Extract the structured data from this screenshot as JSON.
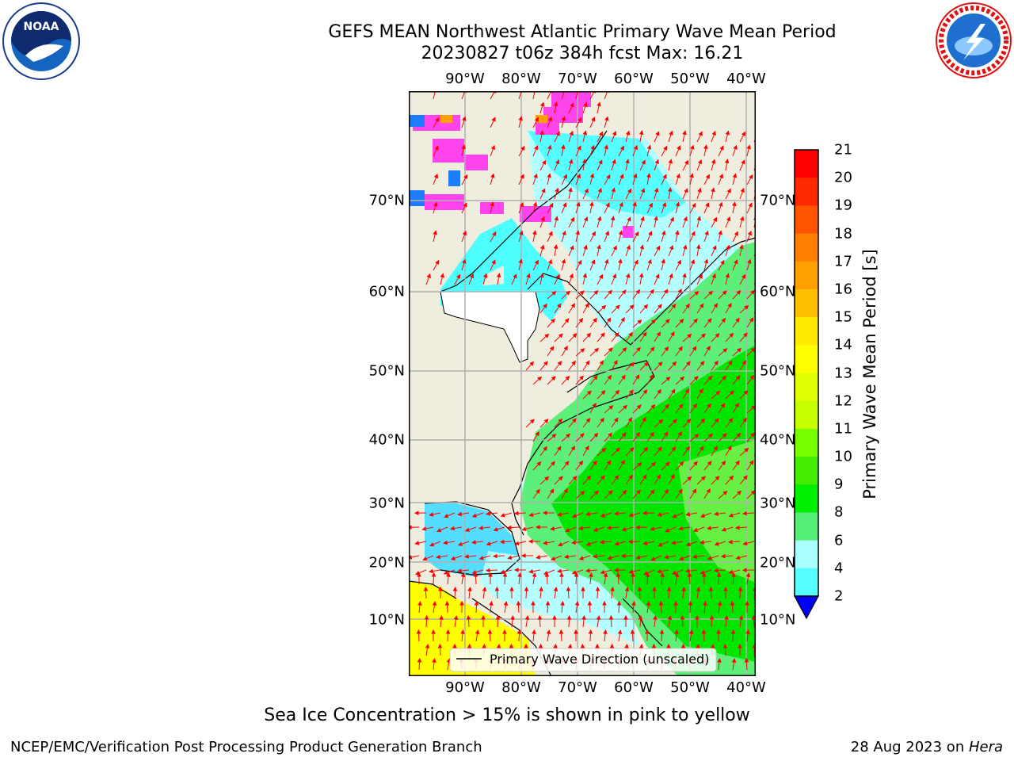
{
  "title": {
    "line1": "GEFS MEAN Northwest Atlantic Primary Wave Mean Period",
    "line2": "20230827 t06z 384h fcst   Max: 16.21"
  },
  "logos": {
    "left": "noora-logo",
    "left_inner_text": "NOAA",
    "right": "nws-logo",
    "right_ring_text": "NATIONAL WEATHER SERVICE"
  },
  "map": {
    "lon_ticks_top": [
      "90°W",
      "80°W",
      "70°W",
      "60°W",
      "50°W",
      "40°W"
    ],
    "lon_ticks_bottom": [
      "90°W",
      "80°W",
      "70°W",
      "60°W",
      "50°W",
      "40°W"
    ],
    "lat_ticks_left": [
      "70°N",
      "60°N",
      "50°N",
      "40°N",
      "30°N",
      "20°N",
      "10°N"
    ],
    "lat_ticks_right": [
      "70°N",
      "60°N",
      "50°N",
      "40°N",
      "30°N",
      "20°N",
      "10°N"
    ],
    "legend_label": "Primary Wave Direction (unscaled)",
    "colors": {
      "land": "#efedde",
      "ocean_light": "#b4ffff",
      "ocean_cyan": "#4dffff",
      "ocean_green_light": "#5cf07a",
      "ocean_green": "#00e600",
      "ocean_yellow": "#ffff00",
      "ice_pink": "#ff44ee",
      "arrow": "#ff0000",
      "grid": "#b0b0b0"
    }
  },
  "colorbar": {
    "title": "Primary Wave Mean Period [s]",
    "labels": [
      "21",
      "20",
      "19",
      "18",
      "17",
      "16",
      "15",
      "14",
      "13",
      "12",
      "11",
      "10",
      "9",
      "8",
      "6",
      "4",
      "2"
    ],
    "colors": [
      "#ff0000",
      "#ff2a00",
      "#ff5500",
      "#ff7f00",
      "#ff9f00",
      "#ffbf00",
      "#ffea00",
      "#ffff00",
      "#e0ff00",
      "#c8ff00",
      "#77ff00",
      "#44ee00",
      "#00ee00",
      "#55ee77",
      "#aaffff",
      "#55ffff",
      "#00ffff",
      "#0080ff"
    ],
    "extend_color": "#0000ff"
  },
  "note": "Sea Ice Concentration > 15% is shown in pink to yellow",
  "footer": {
    "left": "NCEP/EMC/Verification Post Processing Product Generation Branch",
    "right_prefix": "28 Aug 2023 on ",
    "right_host": "Hera"
  }
}
